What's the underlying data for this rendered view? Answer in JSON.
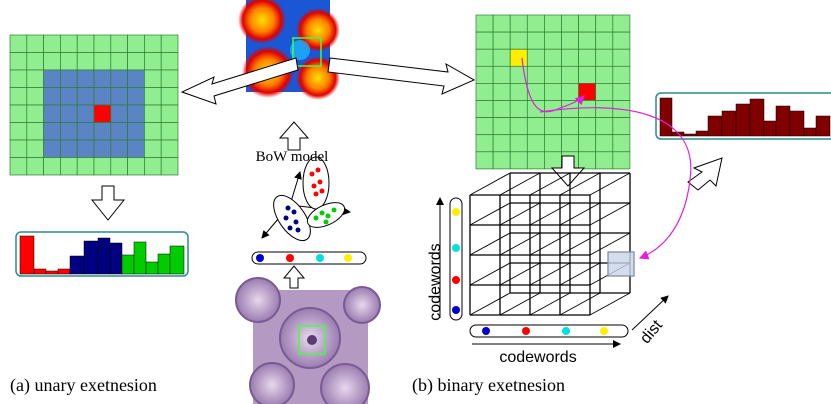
{
  "labels": {
    "bow_model": "BoW model",
    "codewords_vertical": "codewords",
    "codewords_horizontal": "codewords",
    "dist": "dist",
    "caption_a": "(a) unary exetnesion",
    "caption_b": "(b) binary exetnesion"
  }
}
